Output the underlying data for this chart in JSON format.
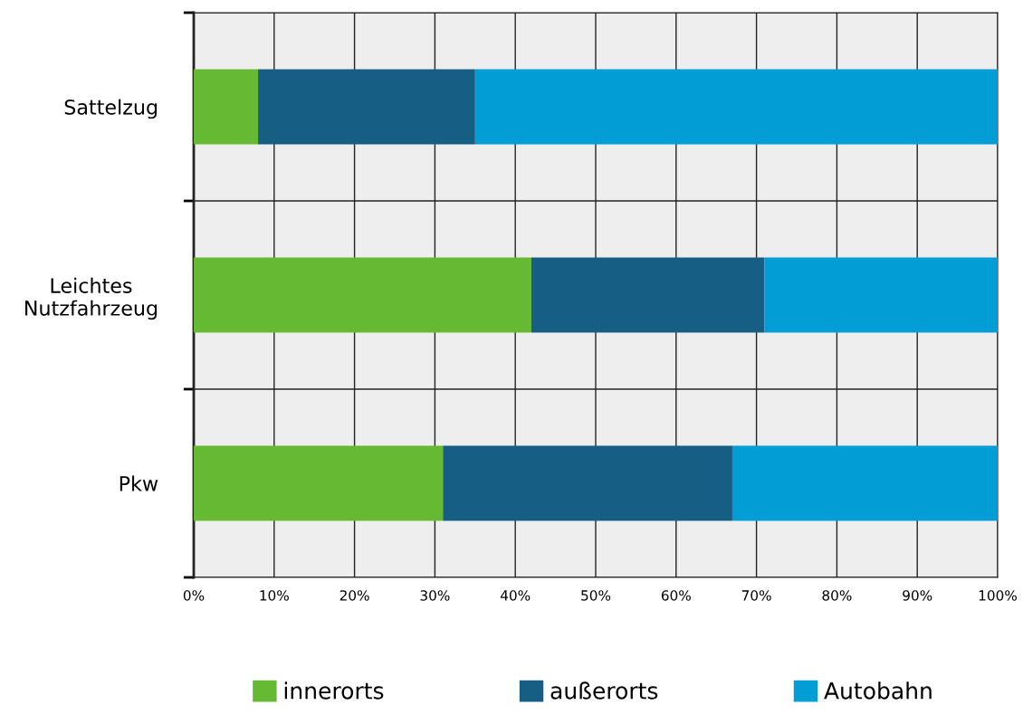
{
  "chart_data": {
    "type": "bar",
    "orientation": "horizontal",
    "stacked": true,
    "categories": [
      "Sattelzug",
      "Leichtes\nNutzfahrzeug",
      "Pkw"
    ],
    "series": [
      {
        "name": "innerorts",
        "color": "#66b933",
        "values": [
          8,
          42,
          31
        ]
      },
      {
        "name": "außerorts",
        "color": "#175e85",
        "values": [
          27,
          29,
          36
        ]
      },
      {
        "name": "Autobahn",
        "color": "#039dd6",
        "values": [
          65,
          29,
          33
        ]
      }
    ],
    "xlim": [
      0,
      100
    ],
    "xticks": [
      {
        "value": 0,
        "label": "0%"
      },
      {
        "value": 10,
        "label": "10%"
      },
      {
        "value": 20,
        "label": "20%"
      },
      {
        "value": 30,
        "label": "30%"
      },
      {
        "value": 40,
        "label": "40%"
      },
      {
        "value": 50,
        "label": "50%"
      },
      {
        "value": 60,
        "label": "60%"
      },
      {
        "value": 70,
        "label": "70%"
      },
      {
        "value": 80,
        "label": "80%"
      },
      {
        "value": 90,
        "label": "90%"
      },
      {
        "value": 100,
        "label": "100%"
      }
    ],
    "grid": true,
    "legend": "bottom"
  }
}
